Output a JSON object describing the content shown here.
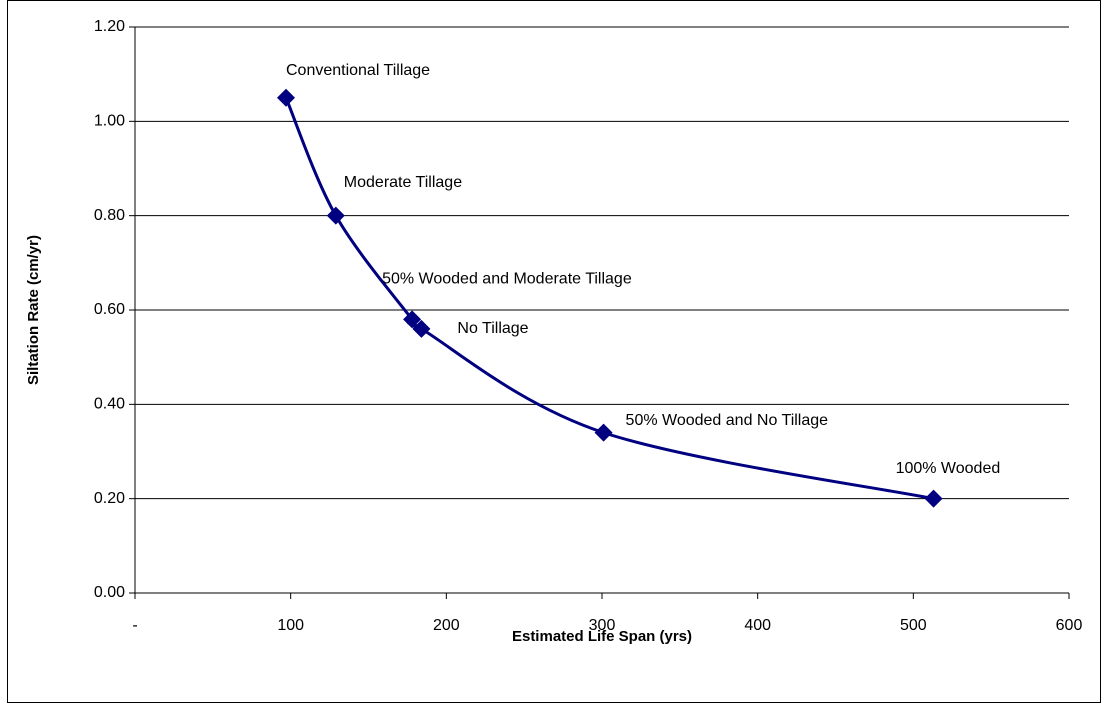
{
  "chart_data": {
    "type": "line",
    "x_label": "Estimated Life Span (yrs)",
    "y_label": "Siltation Rate (cm/yr)",
    "series": [
      {
        "color": "#000080",
        "x": [
          97,
          129,
          178,
          184,
          301,
          513
        ],
        "values": [
          1.05,
          0.8,
          0.58,
          0.56,
          0.34,
          0.2
        ],
        "point_labels": [
          "Conventional Tillage",
          "Moderate Tillage",
          "50% Wooded and Moderate Tillage",
          "No Tillage",
          "50% Wooded and No Tillage",
          "100% Wooded"
        ]
      }
    ],
    "xlim": [
      0,
      600
    ],
    "xticks": [
      {
        "value": 0,
        "label": "-"
      },
      100,
      200,
      300,
      400,
      500,
      600
    ],
    "ylim": [
      0,
      1.2
    ],
    "yticks": [
      {
        "value": 0,
        "label": "0.00"
      },
      {
        "value": 0.2,
        "label": "0.20"
      },
      {
        "value": 0.4,
        "label": "0.40"
      },
      {
        "value": 0.6,
        "label": "0.60"
      },
      {
        "value": 0.8,
        "label": "0.80"
      },
      {
        "value": 1,
        "label": "1.00"
      },
      {
        "value": 1.2,
        "label": "1.20"
      }
    ],
    "grid": true
  }
}
